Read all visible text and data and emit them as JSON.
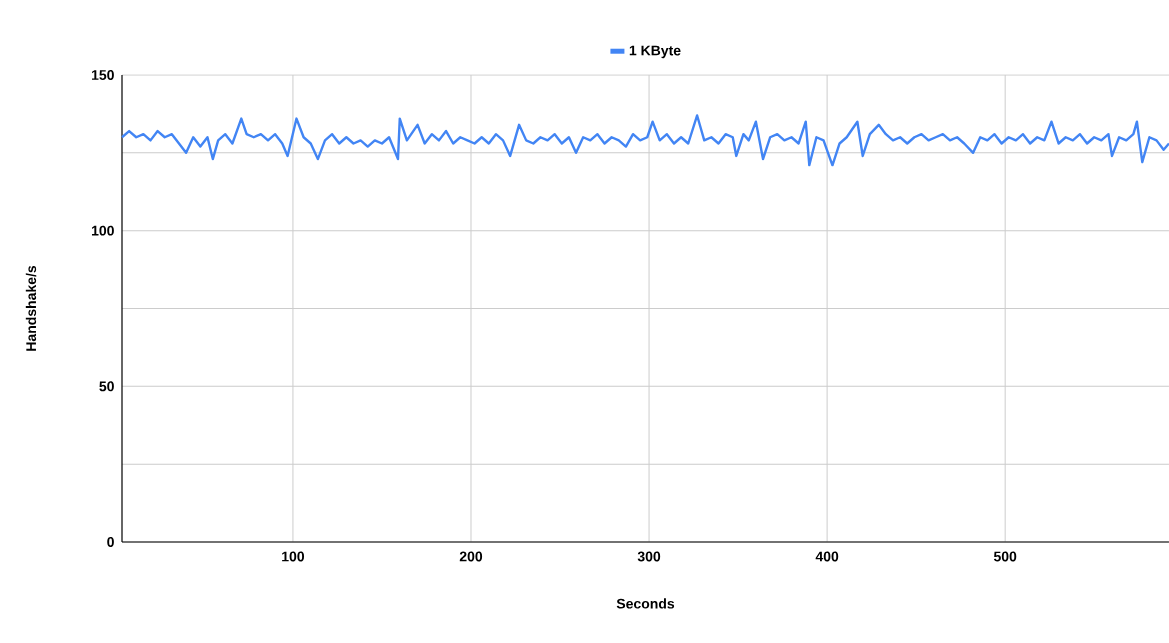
{
  "chart_data": {
    "type": "line",
    "xlabel": "Seconds",
    "ylabel": "Handshake/s",
    "x": [
      4,
      8,
      12,
      16,
      20,
      24,
      28,
      32,
      36,
      40,
      44,
      48,
      52,
      55,
      58,
      62,
      66,
      71,
      74,
      78,
      82,
      86,
      90,
      94,
      97,
      102,
      106,
      110,
      114,
      118,
      122,
      126,
      130,
      134,
      138,
      142,
      146,
      150,
      154,
      159,
      160,
      164,
      170,
      174,
      178,
      182,
      186,
      190,
      194,
      198,
      202,
      206,
      210,
      214,
      218,
      222,
      227,
      231,
      235,
      239,
      243,
      247,
      251,
      255,
      259,
      263,
      267,
      271,
      275,
      279,
      283,
      287,
      291,
      295,
      299,
      302,
      306,
      310,
      314,
      318,
      322,
      327,
      331,
      335,
      339,
      343,
      347,
      349,
      353,
      356,
      360,
      364,
      368,
      372,
      376,
      380,
      384,
      388,
      390,
      394,
      398,
      403,
      407,
      411,
      417,
      420,
      424,
      429,
      433,
      437,
      441,
      445,
      449,
      453,
      457,
      461,
      465,
      469,
      473,
      477,
      482,
      486,
      490,
      494,
      498,
      502,
      506,
      510,
      514,
      518,
      522,
      526,
      530,
      534,
      538,
      542,
      546,
      550,
      554,
      558,
      560,
      564,
      568,
      572,
      574,
      577,
      581,
      585,
      589,
      592
    ],
    "series": [
      {
        "name": "1 KByte",
        "color": "#4285f4",
        "values": [
          130,
          132,
          130,
          131,
          129,
          132,
          130,
          131,
          128,
          125,
          130,
          127,
          130,
          123,
          129,
          131,
          128,
          136,
          131,
          130,
          131,
          129,
          131,
          128,
          124,
          136,
          130,
          128,
          123,
          129,
          131,
          128,
          130,
          128,
          129,
          127,
          129,
          128,
          130,
          123,
          136,
          129,
          134,
          128,
          131,
          129,
          132,
          128,
          130,
          129,
          128,
          130,
          128,
          131,
          129,
          124,
          134,
          129,
          128,
          130,
          129,
          131,
          128,
          130,
          125,
          130,
          129,
          131,
          128,
          130,
          129,
          127,
          131,
          129,
          130,
          135,
          129,
          131,
          128,
          130,
          128,
          137,
          129,
          130,
          128,
          131,
          130,
          124,
          131,
          129,
          135,
          123,
          130,
          131,
          129,
          130,
          128,
          135,
          121,
          130,
          129,
          121,
          128,
          130,
          135,
          124,
          131,
          134,
          131,
          129,
          130,
          128,
          130,
          131,
          129,
          130,
          131,
          129,
          130,
          128,
          125,
          130,
          129,
          131,
          128,
          130,
          129,
          131,
          128,
          130,
          129,
          135,
          128,
          130,
          129,
          131,
          128,
          130,
          129,
          131,
          124,
          130,
          129,
          131,
          135,
          122,
          130,
          129,
          126,
          128
        ]
      }
    ],
    "xlim": [
      4,
      592
    ],
    "ylim": [
      0,
      150
    ],
    "xticks": [
      100,
      200,
      300,
      400,
      500
    ],
    "yticks": [
      0,
      {
        "value": 25,
        "label": null
      },
      50,
      {
        "value": 75,
        "label": null
      },
      100,
      {
        "value": 125,
        "label": null
      },
      150
    ],
    "grid": true,
    "legend": "top",
    "marker": "none",
    "line_style": "solid"
  }
}
